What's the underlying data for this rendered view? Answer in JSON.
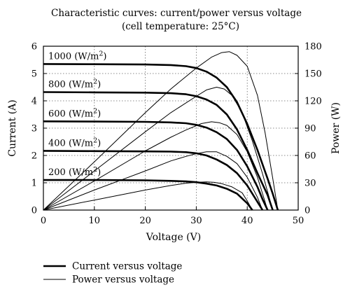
{
  "chart_data": {
    "type": "line",
    "title": "Characteristic curves: current/power versus voltage",
    "subtitle": "(cell temperature: 25°C)",
    "xlabel": "Voltage (V)",
    "ylabel_left": "Current (A)",
    "ylabel_right": "Power (W)",
    "xlim": [
      0,
      50
    ],
    "ylim_left": [
      0,
      6
    ],
    "ylim_right": [
      0,
      180
    ],
    "xticks": [
      0,
      10,
      20,
      30,
      40,
      50
    ],
    "yticks_left": [
      0,
      1,
      2,
      3,
      4,
      5,
      6
    ],
    "yticks_right": [
      0,
      30,
      60,
      90,
      120,
      150,
      180
    ],
    "grid": "dotted",
    "legend": [
      {
        "label": "Current versus voltage",
        "style": "thick"
      },
      {
        "label": "Power versus voltage",
        "style": "thin"
      }
    ],
    "series": [
      {
        "name": "1000 (W/m2)",
        "label_text": "1000 (W/m",
        "label_sup": "2",
        "label_close": ")",
        "current": [
          [
            0,
            5.35
          ],
          [
            10,
            5.34
          ],
          [
            20,
            5.33
          ],
          [
            25,
            5.31
          ],
          [
            28,
            5.27
          ],
          [
            30,
            5.2
          ],
          [
            32,
            5.07
          ],
          [
            34,
            4.85
          ],
          [
            36,
            4.5
          ],
          [
            38,
            3.95
          ],
          [
            40,
            3.15
          ],
          [
            42,
            2.2
          ],
          [
            44,
            1.15
          ],
          [
            45,
            0.6
          ],
          [
            46,
            0
          ]
        ],
        "power": [
          [
            0,
            0
          ],
          [
            10,
            53
          ],
          [
            20,
            107
          ],
          [
            25,
            133
          ],
          [
            30,
            156
          ],
          [
            33,
            168
          ],
          [
            35,
            173
          ],
          [
            36.5,
            174
          ],
          [
            38,
            170
          ],
          [
            40,
            158
          ],
          [
            42,
            126
          ],
          [
            43.5,
            85
          ],
          [
            45,
            35
          ],
          [
            46,
            0
          ]
        ]
      },
      {
        "name": "800 (W/m2)",
        "label_text": "800 (W/m",
        "label_sup": "2",
        "label_close": ")",
        "current": [
          [
            0,
            4.32
          ],
          [
            10,
            4.31
          ],
          [
            20,
            4.3
          ],
          [
            25,
            4.28
          ],
          [
            28,
            4.24
          ],
          [
            30,
            4.17
          ],
          [
            32,
            4.05
          ],
          [
            34,
            3.85
          ],
          [
            36,
            3.5
          ],
          [
            38,
            2.95
          ],
          [
            40,
            2.2
          ],
          [
            42,
            1.35
          ],
          [
            44,
            0.55
          ],
          [
            45,
            0
          ]
        ],
        "power": [
          [
            0,
            0
          ],
          [
            10,
            43
          ],
          [
            20,
            86
          ],
          [
            25,
            107
          ],
          [
            30,
            125
          ],
          [
            32,
            132
          ],
          [
            34,
            135
          ],
          [
            35.5,
            133
          ],
          [
            37,
            126
          ],
          [
            39,
            107
          ],
          [
            41,
            76
          ],
          [
            43,
            40
          ],
          [
            45,
            0
          ]
        ]
      },
      {
        "name": "600 (W/m2)",
        "label_text": "600 (W/m",
        "label_sup": "2",
        "label_close": ")",
        "current": [
          [
            0,
            3.25
          ],
          [
            10,
            3.24
          ],
          [
            20,
            3.23
          ],
          [
            25,
            3.21
          ],
          [
            28,
            3.18
          ],
          [
            30,
            3.12
          ],
          [
            32,
            3.02
          ],
          [
            34,
            2.85
          ],
          [
            36,
            2.6
          ],
          [
            38,
            2.2
          ],
          [
            40,
            1.6
          ],
          [
            42,
            0.85
          ],
          [
            43,
            0.4
          ],
          [
            44,
            0
          ]
        ],
        "power": [
          [
            0,
            0
          ],
          [
            10,
            32
          ],
          [
            20,
            65
          ],
          [
            25,
            80
          ],
          [
            28,
            88
          ],
          [
            31,
            95
          ],
          [
            33,
            97
          ],
          [
            34.5,
            96
          ],
          [
            36,
            93
          ],
          [
            38,
            83
          ],
          [
            40,
            64
          ],
          [
            42,
            36
          ],
          [
            44,
            0
          ]
        ]
      },
      {
        "name": "400 (W/m2)",
        "label_text": "400 (W/m",
        "label_sup": "2",
        "label_close": ")",
        "current": [
          [
            0,
            2.17
          ],
          [
            10,
            2.16
          ],
          [
            20,
            2.15
          ],
          [
            25,
            2.14
          ],
          [
            28,
            2.12
          ],
          [
            30,
            2.08
          ],
          [
            32,
            2.0
          ],
          [
            34,
            1.85
          ],
          [
            36,
            1.65
          ],
          [
            38,
            1.35
          ],
          [
            40,
            0.9
          ],
          [
            42,
            0.3
          ],
          [
            43,
            0
          ]
        ],
        "power": [
          [
            0,
            0
          ],
          [
            10,
            22
          ],
          [
            20,
            43
          ],
          [
            25,
            54
          ],
          [
            28,
            59
          ],
          [
            30,
            62
          ],
          [
            32,
            64
          ],
          [
            34,
            64
          ],
          [
            36,
            59
          ],
          [
            38,
            51
          ],
          [
            40,
            36
          ],
          [
            42,
            14
          ],
          [
            43,
            0
          ]
        ]
      },
      {
        "name": "200 (W/m2)",
        "label_text": "200 (W/m",
        "label_sup": "2",
        "label_close": ")",
        "current": [
          [
            0,
            1.1
          ],
          [
            10,
            1.1
          ],
          [
            20,
            1.09
          ],
          [
            25,
            1.07
          ],
          [
            28,
            1.05
          ],
          [
            30,
            1.02
          ],
          [
            32,
            0.97
          ],
          [
            34,
            0.9
          ],
          [
            36,
            0.78
          ],
          [
            38,
            0.6
          ],
          [
            40,
            0.25
          ],
          [
            41,
            0
          ]
        ],
        "power": [
          [
            0,
            0
          ],
          [
            10,
            11
          ],
          [
            20,
            22
          ],
          [
            25,
            27
          ],
          [
            28,
            29.5
          ],
          [
            30,
            30.5
          ],
          [
            32,
            31
          ],
          [
            33.5,
            30.5
          ],
          [
            35,
            29
          ],
          [
            37,
            25.5
          ],
          [
            39,
            19
          ],
          [
            40,
            10
          ],
          [
            41,
            0
          ]
        ]
      }
    ]
  }
}
